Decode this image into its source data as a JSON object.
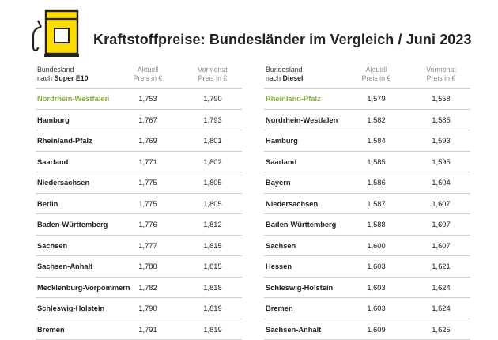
{
  "title": "Kraftstoffpreise: Bundesländer im Vergleich / Juni 2023",
  "colors": {
    "accent_yellow": "#ffdc00",
    "highlight_green": "#8cb030",
    "icon_stroke": "#222222"
  },
  "icon": "fuel-pump-icon",
  "super_e10": {
    "header": {
      "line1": "Bundesland",
      "line2_prefix": "nach ",
      "line2_bold": "Super E10",
      "aktuell_1": "Aktuell",
      "aktuell_2": "Preis in €",
      "vormonat_1": "Vormonat",
      "vormonat_2": "Preis in €"
    },
    "rows": [
      {
        "state": "Nordrhein-Westfalen",
        "aktuell": "1,753",
        "vormonat": "1,790"
      },
      {
        "state": "Hamburg",
        "aktuell": "1,767",
        "vormonat": "1,793"
      },
      {
        "state": "Rheinland-Pfalz",
        "aktuell": "1,769",
        "vormonat": "1,801"
      },
      {
        "state": "Saarland",
        "aktuell": "1,771",
        "vormonat": "1,802"
      },
      {
        "state": "Niedersachsen",
        "aktuell": "1,775",
        "vormonat": "1,805"
      },
      {
        "state": "Berlin",
        "aktuell": "1,775",
        "vormonat": "1,805"
      },
      {
        "state": "Baden-Württemberg",
        "aktuell": "1,776",
        "vormonat": "1,812"
      },
      {
        "state": "Sachsen",
        "aktuell": "1,777",
        "vormonat": "1,815"
      },
      {
        "state": "Sachsen-Anhalt",
        "aktuell": "1,780",
        "vormonat": "1,815"
      },
      {
        "state": "Mecklenburg-Vorpommern",
        "aktuell": "1,782",
        "vormonat": "1,818"
      },
      {
        "state": "Schleswig-Holstein",
        "aktuell": "1,790",
        "vormonat": "1,819"
      },
      {
        "state": "Bremen",
        "aktuell": "1,791",
        "vormonat": "1,819"
      }
    ]
  },
  "diesel": {
    "header": {
      "line1": "Bundesland",
      "line2_prefix": "nach ",
      "line2_bold": "Diesel",
      "aktuell_1": "Aktuell",
      "aktuell_2": "Preis in €",
      "vormonat_1": "Vormonat",
      "vormonat_2": "Preis in €"
    },
    "rows": [
      {
        "state": "Rheinland-Pfalz",
        "aktuell": "1,579",
        "vormonat": "1,558"
      },
      {
        "state": "Nordrhein-Westfalen",
        "aktuell": "1,582",
        "vormonat": "1,585"
      },
      {
        "state": "Hamburg",
        "aktuell": "1,584",
        "vormonat": "1,593"
      },
      {
        "state": "Saarland",
        "aktuell": "1,585",
        "vormonat": "1,595"
      },
      {
        "state": "Bayern",
        "aktuell": "1,586",
        "vormonat": "1,604"
      },
      {
        "state": "Niedersachsen",
        "aktuell": "1,587",
        "vormonat": "1,607"
      },
      {
        "state": "Baden-Württemberg",
        "aktuell": "1,588",
        "vormonat": "1,607"
      },
      {
        "state": "Sachsen",
        "aktuell": "1,600",
        "vormonat": "1,607"
      },
      {
        "state": "Hessen",
        "aktuell": "1,603",
        "vormonat": "1,621"
      },
      {
        "state": "Schleswig-Holstein",
        "aktuell": "1,603",
        "vormonat": "1,624"
      },
      {
        "state": "Bremen",
        "aktuell": "1,603",
        "vormonat": "1,624"
      },
      {
        "state": "Sachsen-Anhalt",
        "aktuell": "1,609",
        "vormonat": "1,625"
      }
    ]
  }
}
